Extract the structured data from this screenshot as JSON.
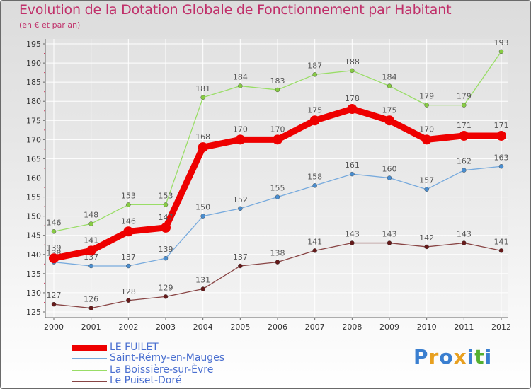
{
  "title": "Evolution de la Dotation Globale de Fonctionnement par Habitant",
  "subtitle": "(en € et par an)",
  "colors": {
    "grid": "#ffffff",
    "axis": "#666666",
    "tick_text": "#333333",
    "label_text": "#555555",
    "minor_tick": "#d04060"
  },
  "chart_data": {
    "type": "line",
    "title": "Evolution de la Dotation Globale de Fonctionnement par Habitant",
    "subtitle": "(en € et par an)",
    "xlabel": "",
    "ylabel": "",
    "x": [
      "2000",
      "2001",
      "2002",
      "2003",
      "2004",
      "2005",
      "2006",
      "2007",
      "2008",
      "2009",
      "2010",
      "2011",
      "2012"
    ],
    "ylim": [
      125,
      195
    ],
    "yticks": [
      "125",
      "130",
      "135",
      "140",
      "145",
      "150",
      "155",
      "160",
      "165",
      "170",
      "175",
      "180",
      "185",
      "190",
      "195"
    ],
    "grid": true,
    "legend_position": "bottom-left",
    "series": [
      {
        "name": "La Boissière-sur-Èvre",
        "color": "#99dd66",
        "marker": "#88cc44",
        "values": [
          146,
          148,
          153,
          153,
          181,
          184,
          183,
          187,
          188,
          184,
          179,
          179,
          193
        ],
        "labels": [
          "146",
          "148",
          "153",
          "153",
          "181",
          "184",
          "183",
          "187",
          "188",
          "184",
          "179",
          "179",
          "193"
        ],
        "bold": false
      },
      {
        "name": "Saint-Rémy-en-Mauges",
        "color": "#77aadd",
        "marker": "#4a8ed0",
        "values": [
          138,
          137,
          137,
          139,
          150,
          152,
          155,
          158,
          161,
          160,
          157,
          162,
          163
        ],
        "labels": [
          "138",
          "137",
          "137",
          "139",
          "150",
          "152",
          "155",
          "158",
          "161",
          "160",
          "157",
          "162",
          "163"
        ],
        "bold": false
      },
      {
        "name": "Le Puiset-Doré",
        "color": "#884444",
        "marker": "#661a1a",
        "values": [
          127,
          126,
          128,
          129,
          131,
          137,
          138,
          141,
          143,
          143,
          142,
          143,
          141
        ],
        "labels": [
          "127",
          "126",
          "128",
          "129",
          "131",
          "137",
          "138",
          "141",
          "143",
          "143",
          "142",
          "143",
          "141"
        ],
        "bold": false
      },
      {
        "name": "LE FUILET",
        "color": "#ee0000",
        "marker": "#ee0000",
        "values": [
          139,
          141,
          146,
          147,
          168,
          170,
          170,
          175,
          178,
          175,
          170,
          171,
          171
        ],
        "labels": [
          "139",
          "141",
          "146",
          "147",
          "168",
          "170",
          "170",
          "175",
          "178",
          "175",
          "170",
          "171",
          "171"
        ],
        "bold": true
      }
    ],
    "legend": [
      "LE FUILET",
      "Saint-Rémy-en-Mauges",
      "La Boissière-sur-Èvre",
      "Le Puiset-Doré"
    ]
  },
  "logo": {
    "letters": [
      "P",
      "r",
      "o",
      "x",
      "i",
      "t",
      "i"
    ],
    "colors": [
      "#3a7fd0",
      "#e8a020",
      "#3a7fd0",
      "#e8a020",
      "#3a7fd0",
      "#55b030",
      "#3a7fd0"
    ]
  }
}
